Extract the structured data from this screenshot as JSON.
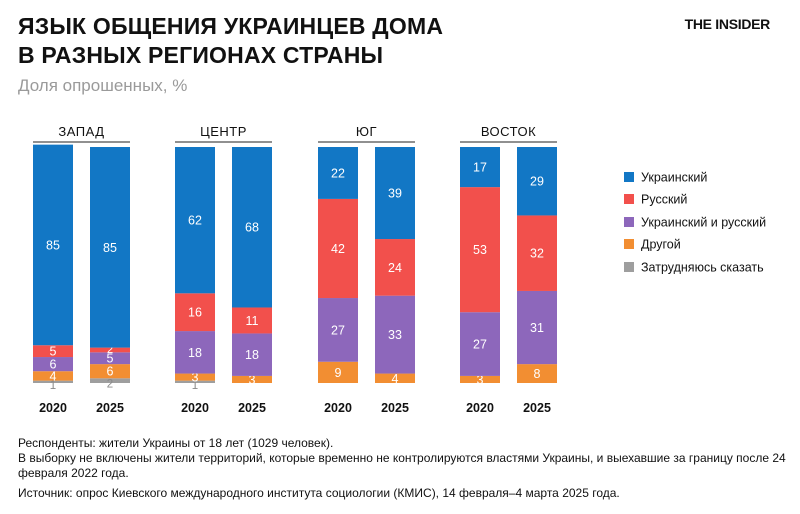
{
  "header": {
    "title_line1": "ЯЗЫК ОБЩЕНИЯ УКРАИНЦЕВ ДОМА",
    "title_line2": "В РАЗНЫХ РЕГИОНАХ СТРАНЫ",
    "subtitle": "Доля опрошенных, %",
    "logo": "THE INSIDER"
  },
  "colors": {
    "ukrainian": "#1277c5",
    "russian": "#f2504c",
    "both": "#8d67bb",
    "other": "#f28e32",
    "undecided": "#9e9e9e"
  },
  "chart_data": {
    "type": "bar",
    "stacked": true,
    "title": "ЯЗЫК ОБЩЕНИЯ УКРАИНЦЕВ ДОМА В РАЗНЫХ РЕГИОНАХ СТРАНЫ",
    "subtitle": "Доля опрошенных, %",
    "ylim": [
      0,
      100
    ],
    "years": [
      "2020",
      "2025"
    ],
    "series": [
      {
        "key": "ukrainian",
        "name": "Украинский"
      },
      {
        "key": "russian",
        "name": "Русский"
      },
      {
        "key": "both",
        "name": "Украинский и русский"
      },
      {
        "key": "other",
        "name": "Другой"
      },
      {
        "key": "undecided",
        "name": "Затрудняюсь сказать"
      }
    ],
    "legend_position": "right",
    "regions": [
      {
        "name": "ЗАПАД",
        "bars": [
          {
            "year": "2020",
            "values": {
              "ukrainian": 85,
              "russian": 5,
              "both": 6,
              "other": 4,
              "undecided": 1
            }
          },
          {
            "year": "2025",
            "values": {
              "ukrainian": 85,
              "russian": 2,
              "both": 5,
              "other": 6,
              "undecided": 2
            }
          }
        ]
      },
      {
        "name": "ЦЕНТР",
        "bars": [
          {
            "year": "2020",
            "values": {
              "ukrainian": 62,
              "russian": 16,
              "both": 18,
              "other": 3,
              "undecided": 1
            }
          },
          {
            "year": "2025",
            "values": {
              "ukrainian": 68,
              "russian": 11,
              "both": 18,
              "other": 3,
              "undecided": 0
            }
          }
        ]
      },
      {
        "name": "ЮГ",
        "bars": [
          {
            "year": "2020",
            "values": {
              "ukrainian": 22,
              "russian": 42,
              "both": 27,
              "other": 9,
              "undecided": 0
            }
          },
          {
            "year": "2025",
            "values": {
              "ukrainian": 39,
              "russian": 24,
              "both": 33,
              "other": 4,
              "undecided": 0
            }
          }
        ]
      },
      {
        "name": "ВОСТОК",
        "bars": [
          {
            "year": "2020",
            "values": {
              "ukrainian": 17,
              "russian": 53,
              "both": 27,
              "other": 3,
              "undecided": 0
            }
          },
          {
            "year": "2025",
            "values": {
              "ukrainian": 29,
              "russian": 32,
              "both": 31,
              "other": 8,
              "undecided": 0
            }
          }
        ]
      }
    ]
  },
  "footnotes": {
    "respondents": "Респонденты: жители Украины от 18 лет (1029 человек).",
    "exclusion": "В выборку не включены жители территорий, которые временно не контролируются властями Украины, и выехавшие за границу после 24 февраля 2022 года.",
    "source": "Источник: опрос Киевского международного института социологии (КМИС), 14 февраля–4 марта 2025 года."
  }
}
